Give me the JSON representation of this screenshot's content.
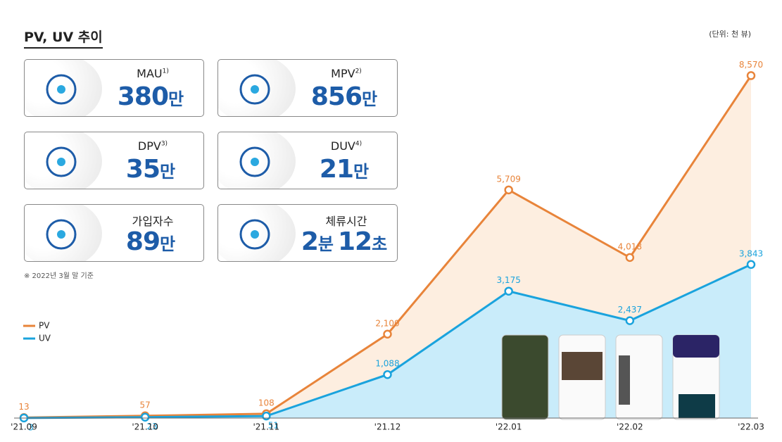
{
  "header": {
    "title": "PV, UV 추이",
    "unit": "(단위: 천 뷰)"
  },
  "cards": [
    {
      "label": "MAU",
      "note": "1)",
      "parts": [
        {
          "num": "380",
          "unit": "만"
        }
      ]
    },
    {
      "label": "MPV",
      "note": "2)",
      "parts": [
        {
          "num": "856",
          "unit": "만"
        }
      ]
    },
    {
      "label": "DPV",
      "note": "3)",
      "parts": [
        {
          "num": "35",
          "unit": "만"
        }
      ]
    },
    {
      "label": "DUV",
      "note": "4)",
      "parts": [
        {
          "num": "21",
          "unit": "만"
        }
      ]
    },
    {
      "label": "가입자수",
      "parts": [
        {
          "num": "89",
          "unit": "만"
        }
      ]
    },
    {
      "label": "체류시간",
      "parts": [
        {
          "num": "2",
          "unit": "분"
        },
        {
          "num": "12",
          "unit": "초"
        }
      ]
    }
  ],
  "footnote": "※ 2022년 3월 말 기준",
  "chart_data": {
    "type": "area-line",
    "categories": [
      "'21.09",
      "'21.10",
      "'21.11",
      "'21.12",
      "'22.01",
      "'22.02",
      "'22.03"
    ],
    "series": [
      {
        "name": "PV",
        "color": "#e8843a",
        "fill": "#fdeee0",
        "values": [
          13,
          57,
          108,
          2100,
          5709,
          4018,
          8570
        ],
        "value_labels": [
          "13",
          "57",
          "108",
          "2,100",
          "5,709",
          "4,018",
          "8,570"
        ]
      },
      {
        "name": "UV",
        "color": "#1aa3dd",
        "fill": "#c9ecfa",
        "values": [
          3,
          23,
          51,
          1088,
          3175,
          2437,
          3843
        ],
        "value_labels": [
          "3",
          "23",
          "51",
          "1,088",
          "3,175",
          "2,437",
          "3,843"
        ]
      }
    ],
    "ylim": [
      0,
      9000
    ],
    "legend": "left"
  }
}
